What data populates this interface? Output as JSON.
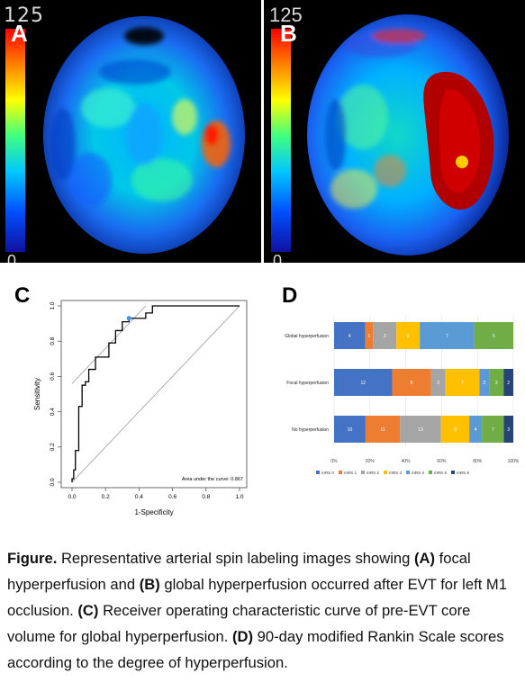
{
  "panel_a": {
    "letter": "A",
    "scale_max": "125",
    "scale_min": "0"
  },
  "panel_b": {
    "letter": "B",
    "scale_max": "125",
    "scale_min": "0"
  },
  "panel_c": {
    "letter": "C"
  },
  "panel_d": {
    "letter": "D"
  },
  "colors": {
    "ramp": [
      "#1010a0",
      "#0050ff",
      "#00c8ff",
      "#40ff80",
      "#ffff00",
      "#ff8000",
      "#ff0000"
    ]
  },
  "chart_data": [
    {
      "type": "line",
      "panel": "C",
      "xlabel": "1-Specificity",
      "ylabel": "Sensitivity",
      "x_ticks": [
        "0.0",
        "0.2",
        "0.4",
        "0.6",
        "0.8",
        "1.0"
      ],
      "y_ticks": [
        "0.0",
        "0.2",
        "0.4",
        "0.6",
        "0.8",
        "1.0"
      ],
      "xlim": [
        0,
        1
      ],
      "ylim": [
        0,
        1
      ],
      "annotation": "Area under the curve: 0.867",
      "roc": {
        "x": [
          0,
          0,
          0.01,
          0.01,
          0.02,
          0.02,
          0.04,
          0.04,
          0.06,
          0.06,
          0.08,
          0.08,
          0.1,
          0.1,
          0.14,
          0.14,
          0.22,
          0.22,
          0.26,
          0.26,
          0.3,
          0.3,
          0.34,
          0.34,
          0.44,
          0.44,
          0.48,
          0.48,
          1.0
        ],
        "y": [
          0,
          0.02,
          0.02,
          0.07,
          0.07,
          0.18,
          0.18,
          0.43,
          0.43,
          0.55,
          0.55,
          0.57,
          0.57,
          0.64,
          0.64,
          0.71,
          0.71,
          0.79,
          0.79,
          0.86,
          0.86,
          0.91,
          0.91,
          0.93,
          0.93,
          0.96,
          0.96,
          1.0,
          1.0
        ]
      },
      "optimal_point": {
        "x": 0.34,
        "y": 0.93
      },
      "reference_lines": [
        {
          "x": [
            0,
            1
          ],
          "y": [
            0,
            1
          ]
        },
        {
          "x": [
            0,
            0.44
          ],
          "y": [
            0.56,
            1.0
          ]
        }
      ]
    },
    {
      "type": "bar",
      "panel": "D",
      "orientation": "horizontal-stacked-100",
      "categories": [
        "Global hyperperfusion",
        "Focal hyperperfusion",
        "No hyperperfusion"
      ],
      "x_ticks": [
        "0%",
        "20%",
        "40%",
        "60%",
        "80%",
        "100%"
      ],
      "series": [
        {
          "name": "mRS 0",
          "color": "#4472c4",
          "values": [
            4,
            12,
            10
          ]
        },
        {
          "name": "mRS 1",
          "color": "#ed7d31",
          "values": [
            1,
            8,
            11
          ]
        },
        {
          "name": "mRS 2",
          "color": "#a5a5a5",
          "values": [
            3,
            3,
            13
          ]
        },
        {
          "name": "mRS 3",
          "color": "#ffc000",
          "values": [
            3,
            7,
            9
          ]
        },
        {
          "name": "mRS 4",
          "color": "#5b9bd5",
          "values": [
            7,
            2,
            4
          ]
        },
        {
          "name": "mRS 5",
          "color": "#70ad47",
          "values": [
            5,
            3,
            7
          ]
        },
        {
          "name": "mRS 6",
          "color": "#264478",
          "values": [
            0,
            2,
            3
          ]
        }
      ],
      "legend_position": "bottom"
    }
  ],
  "caption": {
    "lead": "Figure.",
    "t1": " Representative arterial spin labeling images showing ",
    "a": "(A)",
    "t2": " focal hyperperfusion and ",
    "b": "(B)",
    "t3": " global hyperperfusion occurred after EVT for left M1 occlusion. ",
    "c": "(C)",
    "t4": " Receiver operating characteristic curve of pre-EVT core volume for global hyperperfusion. ",
    "d": "(D)",
    "t5": " 90-day modified Rankin Scale scores according to the degree of hyperperfusion."
  }
}
